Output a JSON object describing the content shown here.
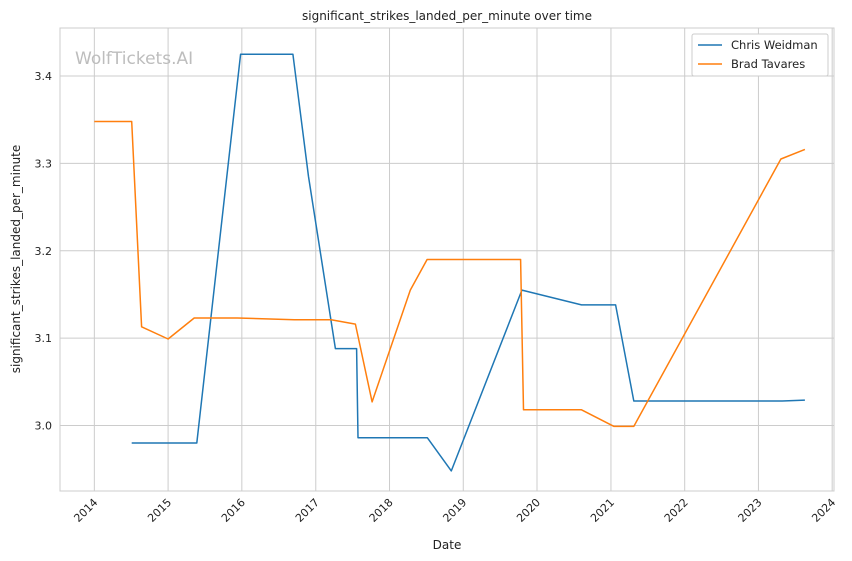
{
  "chart_data": {
    "type": "line",
    "title": "significant_strikes_landed_per_minute over time",
    "xlabel": "Date",
    "ylabel": "significant_strikes_landed_per_minute",
    "watermark": "WolfTickets.AI",
    "x_ticks": [
      "2014",
      "2015",
      "2016",
      "2017",
      "2018",
      "2019",
      "2020",
      "2021",
      "2022",
      "2023",
      "2024"
    ],
    "y_ticks": [
      "3.0",
      "3.1",
      "3.2",
      "3.3",
      "3.4"
    ],
    "xlim": [
      "2013-07-15",
      "2024-01-10"
    ],
    "ylim": [
      2.925,
      3.455
    ],
    "grid": true,
    "legend_position": "top-right",
    "series": [
      {
        "name": "Chris Weidman",
        "color": "#1f77b4",
        "points": [
          [
            "2014-07-05",
            2.98
          ],
          [
            "2015-05-23",
            2.98
          ],
          [
            "2015-12-26",
            3.425
          ],
          [
            "2016-09-10",
            3.425
          ],
          [
            "2016-11-26",
            3.285
          ],
          [
            "2017-04-08",
            3.088
          ],
          [
            "2017-07-22",
            3.088
          ],
          [
            "2017-07-29",
            2.986
          ],
          [
            "2018-07-07",
            2.986
          ],
          [
            "2018-11-03",
            2.948
          ],
          [
            "2019-10-18",
            3.155
          ],
          [
            "2020-08-08",
            3.138
          ],
          [
            "2021-01-24",
            3.138
          ],
          [
            "2021-04-24",
            3.028
          ],
          [
            "2023-04-29",
            3.028
          ],
          [
            "2023-08-19",
            3.029
          ]
        ]
      },
      {
        "name": "Brad Tavares",
        "color": "#ff7f0e",
        "points": [
          [
            "2014-01-01",
            3.348
          ],
          [
            "2014-07-05",
            3.348
          ],
          [
            "2014-08-23",
            3.113
          ],
          [
            "2015-01-01",
            3.099
          ],
          [
            "2015-05-10",
            3.123
          ],
          [
            "2015-12-10",
            3.123
          ],
          [
            "2016-09-17",
            3.121
          ],
          [
            "2017-03-18",
            3.121
          ],
          [
            "2017-07-16",
            3.116
          ],
          [
            "2017-10-07",
            3.027
          ],
          [
            "2018-04-14",
            3.155
          ],
          [
            "2018-07-06",
            3.19
          ],
          [
            "2019-10-12",
            3.19
          ],
          [
            "2019-10-26",
            3.018
          ],
          [
            "2020-08-08",
            3.018
          ],
          [
            "2021-01-16",
            2.999
          ],
          [
            "2021-04-24",
            2.999
          ],
          [
            "2023-04-22",
            3.305
          ],
          [
            "2023-08-19",
            3.316
          ]
        ]
      }
    ]
  }
}
